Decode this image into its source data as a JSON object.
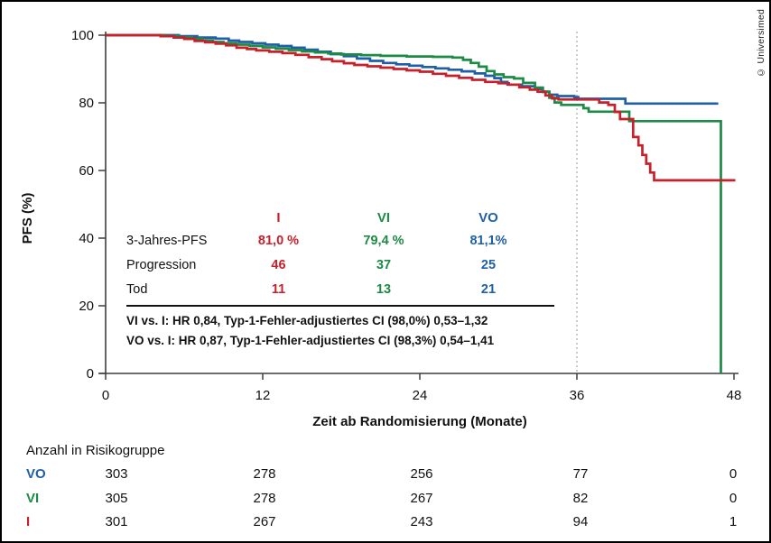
{
  "copyright": "© Universimed",
  "colors": {
    "i": "#c8202a",
    "vi": "#1d8a45",
    "vo": "#1f5fa8",
    "axis": "#3d3d3d",
    "refline": "#999999",
    "text": "#111111"
  },
  "chart_data": {
    "type": "line",
    "subtype": "kaplan-meier-step",
    "title": "",
    "xlabel": "Zeit ab Randomisierung (Monate)",
    "ylabel": "PFS (%)",
    "xlim": [
      0,
      48
    ],
    "ylim": [
      0,
      100
    ],
    "xticks": [
      0,
      12,
      24,
      36,
      48
    ],
    "yticks": [
      0,
      20,
      40,
      60,
      80,
      100
    ],
    "grid": false,
    "legend_position": "none",
    "reference_line_x": 36,
    "series": [
      {
        "name": "VO",
        "color_key": "vo",
        "points": [
          [
            0,
            100
          ],
          [
            5.0,
            100
          ],
          [
            5.6,
            99.7
          ],
          [
            7.0,
            99.3
          ],
          [
            8.4,
            99.0
          ],
          [
            9.4,
            98.4
          ],
          [
            10.2,
            98.0
          ],
          [
            11.2,
            97.6
          ],
          [
            12.2,
            97.2
          ],
          [
            13.2,
            96.8
          ],
          [
            14.2,
            96.3
          ],
          [
            15.2,
            95.7
          ],
          [
            16.2,
            95.1
          ],
          [
            17.2,
            94.4
          ],
          [
            18.2,
            93.8
          ],
          [
            19.2,
            93.1
          ],
          [
            20.2,
            92.4
          ],
          [
            21.2,
            91.8
          ],
          [
            22.2,
            91.4
          ],
          [
            23.2,
            91.0
          ],
          [
            24.2,
            90.6
          ],
          [
            25.2,
            90.2
          ],
          [
            26.2,
            89.8
          ],
          [
            27.2,
            89.3
          ],
          [
            28.2,
            88.7
          ],
          [
            29.0,
            88.0
          ],
          [
            29.7,
            87.3
          ],
          [
            30.2,
            86.2
          ],
          [
            30.7,
            85.4
          ],
          [
            31.8,
            84.9
          ],
          [
            32.8,
            84.1
          ],
          [
            33.4,
            83.3
          ],
          [
            33.9,
            82.4
          ],
          [
            34.5,
            82.0
          ],
          [
            35.8,
            81.7
          ],
          [
            36.1,
            81.2
          ],
          [
            39.3,
            81.2
          ],
          [
            39.7,
            79.8
          ],
          [
            46.8,
            79.8
          ]
        ]
      },
      {
        "name": "VI",
        "color_key": "vi",
        "points": [
          [
            0,
            100
          ],
          [
            4.0,
            100
          ],
          [
            4.6,
            99.7
          ],
          [
            5.6,
            99.4
          ],
          [
            6.6,
            99.0
          ],
          [
            7.4,
            98.5
          ],
          [
            8.2,
            98.0
          ],
          [
            9.0,
            97.6
          ],
          [
            10.0,
            97.2
          ],
          [
            11.0,
            96.8
          ],
          [
            12.0,
            96.4
          ],
          [
            13.0,
            96.0
          ],
          [
            14.0,
            95.6
          ],
          [
            15.0,
            95.2
          ],
          [
            16.0,
            94.9
          ],
          [
            17.0,
            94.6
          ],
          [
            18.0,
            94.3
          ],
          [
            19.5,
            94.1
          ],
          [
            21.0,
            93.9
          ],
          [
            23.0,
            93.7
          ],
          [
            25.0,
            93.6
          ],
          [
            26.5,
            93.4
          ],
          [
            27.3,
            92.7
          ],
          [
            27.9,
            91.8
          ],
          [
            28.5,
            90.7
          ],
          [
            29.1,
            89.4
          ],
          [
            29.7,
            88.4
          ],
          [
            30.4,
            87.6
          ],
          [
            31.2,
            87.2
          ],
          [
            31.9,
            85.9
          ],
          [
            32.8,
            84.5
          ],
          [
            33.4,
            83.2
          ],
          [
            33.9,
            81.5
          ],
          [
            34.3,
            80.1
          ],
          [
            34.8,
            79.4
          ],
          [
            36.3,
            79.4
          ],
          [
            36.5,
            78.4
          ],
          [
            36.9,
            77.4
          ],
          [
            39.8,
            77.4
          ],
          [
            40.0,
            74.6
          ],
          [
            47.0,
            74.6
          ],
          [
            47.0,
            0
          ]
        ]
      },
      {
        "name": "I",
        "color_key": "i",
        "points": [
          [
            0,
            100
          ],
          [
            3.6,
            100
          ],
          [
            4.2,
            99.7
          ],
          [
            5.2,
            99.3
          ],
          [
            6.0,
            98.9
          ],
          [
            6.8,
            98.3
          ],
          [
            7.6,
            97.9
          ],
          [
            8.4,
            97.5
          ],
          [
            9.2,
            97.0
          ],
          [
            10.0,
            96.3
          ],
          [
            10.8,
            95.9
          ],
          [
            11.5,
            95.5
          ],
          [
            12.5,
            95.1
          ],
          [
            13.5,
            94.7
          ],
          [
            14.5,
            94.2
          ],
          [
            15.5,
            93.5
          ],
          [
            16.5,
            92.9
          ],
          [
            17.3,
            92.3
          ],
          [
            18.2,
            91.7
          ],
          [
            19.0,
            91.2
          ],
          [
            20.0,
            90.8
          ],
          [
            21.0,
            90.4
          ],
          [
            22.0,
            90.0
          ],
          [
            23.0,
            89.6
          ],
          [
            24.0,
            89.2
          ],
          [
            25.0,
            88.6
          ],
          [
            26.0,
            88.0
          ],
          [
            27.0,
            87.4
          ],
          [
            28.0,
            86.8
          ],
          [
            29.0,
            86.2
          ],
          [
            30.0,
            85.8
          ],
          [
            30.8,
            85.4
          ],
          [
            31.6,
            84.6
          ],
          [
            32.4,
            83.9
          ],
          [
            33.0,
            83.3
          ],
          [
            33.6,
            82.2
          ],
          [
            34.1,
            81.3
          ],
          [
            34.6,
            81.0
          ],
          [
            37.3,
            81.0
          ],
          [
            37.7,
            80.1
          ],
          [
            38.4,
            79.4
          ],
          [
            38.9,
            77.3
          ],
          [
            39.3,
            75.2
          ],
          [
            40.2,
            75.2
          ],
          [
            40.3,
            69.9
          ],
          [
            40.7,
            67.4
          ],
          [
            41.0,
            64.6
          ],
          [
            41.3,
            62.0
          ],
          [
            41.6,
            59.4
          ],
          [
            41.9,
            57.1
          ],
          [
            48.1,
            57.1
          ]
        ]
      }
    ]
  },
  "stats_table": {
    "columns": [
      "I",
      "VI",
      "VO"
    ],
    "rows": [
      {
        "label": "3-Jahres-PFS",
        "values": [
          "81,0 %",
          "79,4 %",
          "81,1%"
        ]
      },
      {
        "label": "Progression",
        "values": [
          "46",
          "37",
          "25"
        ]
      },
      {
        "label": "Tod",
        "values": [
          "11",
          "13",
          "21"
        ]
      }
    ],
    "footnotes": [
      "VI vs. I: HR 0,84, Typ-1-Fehler-adjustiertes CI (98,0%) 0,53–1,32",
      "VO vs. I: HR 0,87, Typ-1-Fehler-adjustiertes CI (98,3%) 0,54–1,41"
    ]
  },
  "risk_table": {
    "title": "Anzahl in Risikogruppe",
    "time_points": [
      0,
      12,
      24,
      36,
      48
    ],
    "rows": [
      {
        "label": "VO",
        "color_key": "vo",
        "values": [
          "303",
          "278",
          "256",
          "77",
          "0"
        ]
      },
      {
        "label": "VI",
        "color_key": "vi",
        "values": [
          "305",
          "278",
          "267",
          "82",
          "0"
        ]
      },
      {
        "label": "I",
        "color_key": "i",
        "values": [
          "301",
          "267",
          "243",
          "94",
          "1"
        ]
      }
    ]
  }
}
